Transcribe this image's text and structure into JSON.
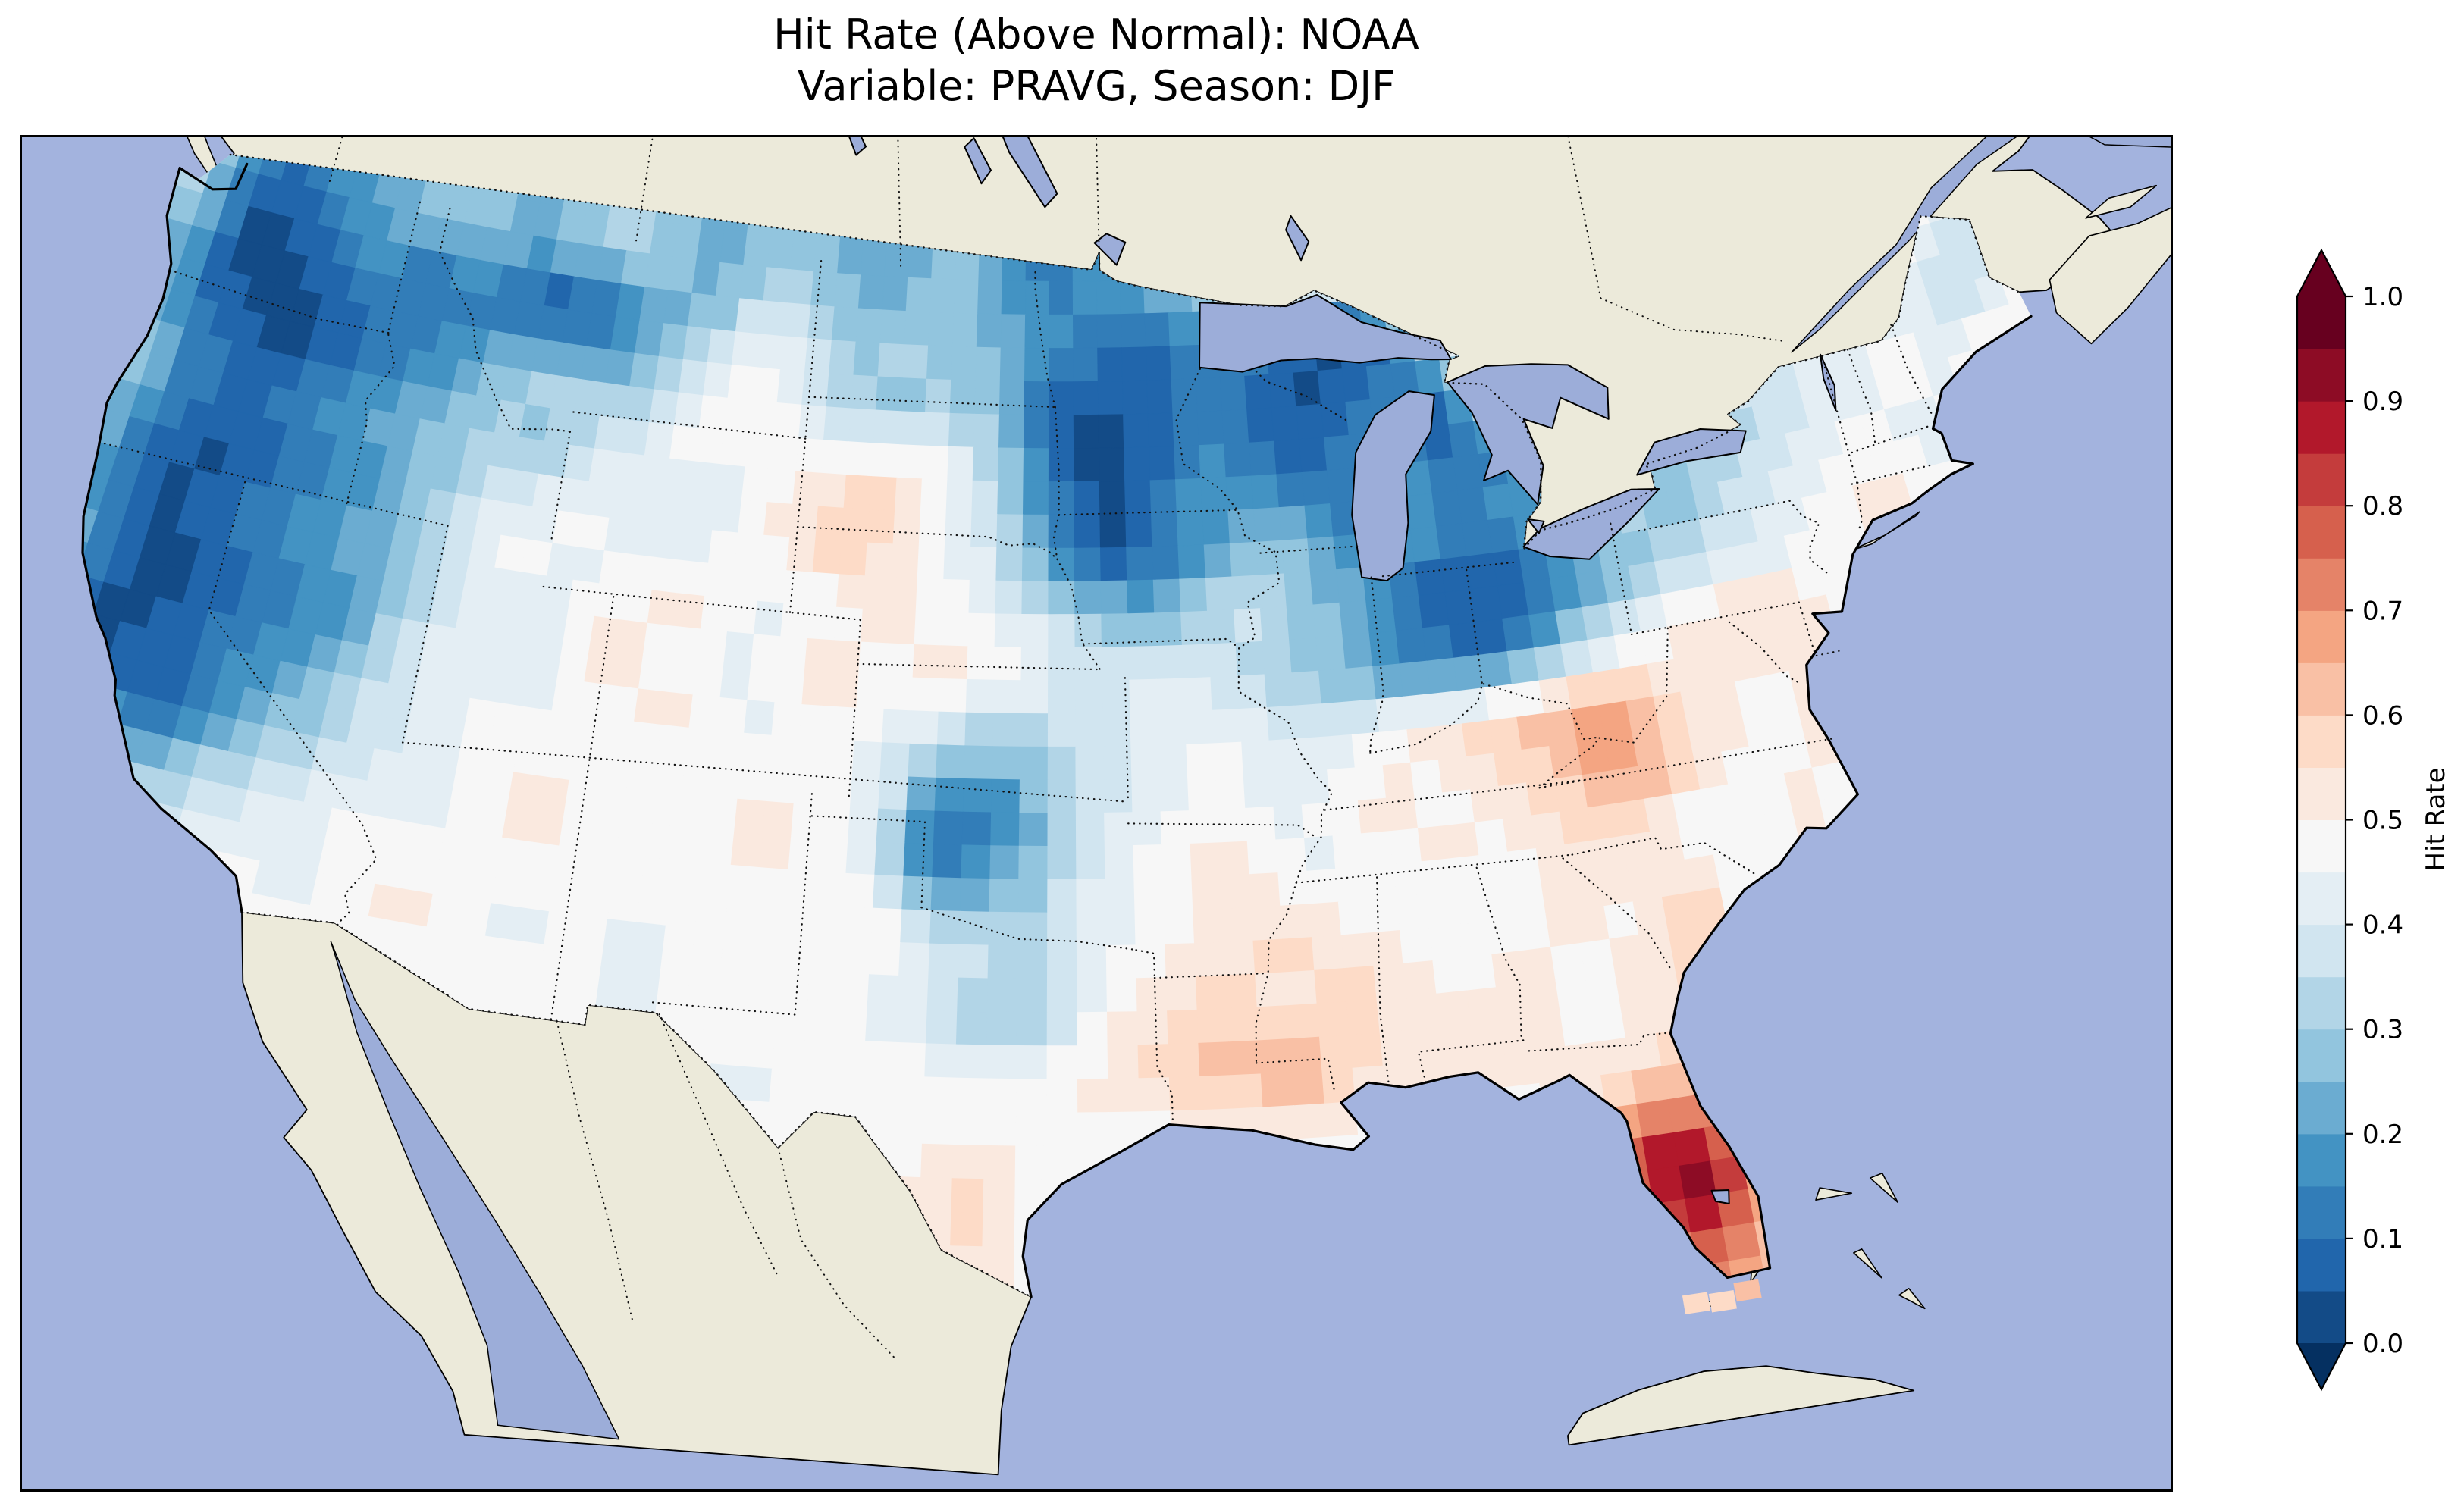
{
  "figure": {
    "title_line1": "Hit Rate (Above Normal): NOAA",
    "title_line2": "Variable: PRAVG, Season: DJF"
  },
  "colorbar": {
    "label": "Hit Rate",
    "tick_labels": [
      "0.0",
      "0.1",
      "0.2",
      "0.3",
      "0.4",
      "0.5",
      "0.6",
      "0.7",
      "0.8",
      "0.9",
      "1.0"
    ],
    "tick_values": [
      0,
      0.1,
      0.2,
      0.3,
      0.4,
      0.5,
      0.6,
      0.7,
      0.8,
      0.9,
      1.0
    ],
    "extend": "both"
  },
  "map_colors": {
    "ocean": "#a3b3de",
    "land": "#eceada",
    "lake": "#9cadd9",
    "coast": "#000000"
  },
  "chart_data": {
    "type": "heatmap",
    "title": "Hit Rate (Above Normal): NOAA",
    "subtitle": "Variable: PRAVG, Season: DJF",
    "variable": "PRAVG",
    "season": "DJF",
    "source_label": "NOAA",
    "colorbar_label": "Hit Rate",
    "value_range": [
      0,
      1
    ],
    "colormap": {
      "name": "RdBu_r",
      "anchors": [
        "#053061",
        "#2166ac",
        "#4393c3",
        "#92c5de",
        "#d1e5f0",
        "#f7f7f7",
        "#fddbc7",
        "#f4a582",
        "#d6604d",
        "#b2182b",
        "#67001f"
      ]
    },
    "grid": {
      "lon_start": -126,
      "lon_step": 1.5,
      "lat_start": 51,
      "lat_step": 1.5,
      "ncols": 40,
      "nrows": 18,
      "values": [
        [
          0.4,
          0.35,
          0.15,
          0.1,
          0.2,
          0.25,
          0.3,
          0.3,
          0.25,
          0.3,
          0.35,
          0.3,
          0.25,
          0.3,
          0.3,
          0.25,
          0.25,
          0.3,
          0.2,
          0.15,
          0.2,
          0.25,
          0.3,
          0.5,
          0.5,
          0.5,
          0.5,
          0.5,
          0.5,
          0.5,
          0.5,
          0.5,
          0.5,
          0.5,
          0.5,
          0.5,
          0.5,
          0.5,
          0.5,
          0.5
        ],
        [
          0.4,
          0.35,
          0.15,
          0.1,
          0.2,
          0.25,
          0.3,
          0.3,
          0.25,
          0.3,
          0.35,
          0.3,
          0.25,
          0.3,
          0.3,
          0.25,
          0.25,
          0.3,
          0.2,
          0.15,
          0.2,
          0.25,
          0.3,
          0.5,
          0.5,
          0.5,
          0.5,
          0.5,
          0.5,
          0.5,
          0.5,
          0.5,
          0.5,
          0.5,
          0.5,
          0.5,
          0.5,
          0.5,
          0.5,
          0.5
        ],
        [
          0.3,
          0.25,
          0.05,
          0.05,
          0.1,
          0.2,
          0.1,
          0.15,
          0.1,
          0.05,
          0.1,
          0.25,
          0.3,
          0.45,
          0.4,
          0.3,
          0.35,
          0.3,
          0.25,
          0.2,
          0.15,
          0.1,
          0.15,
          0.2,
          0.1,
          0.05,
          0.1,
          0.5,
          0.5,
          0.5,
          0.5,
          0.5,
          0.5,
          0.5,
          0.5,
          0.5,
          0.5,
          0.5,
          0.4,
          0.5
        ],
        [
          0.35,
          0.2,
          0.1,
          0.05,
          0.05,
          0.1,
          0.15,
          0.2,
          0.3,
          0.35,
          0.3,
          0.35,
          0.5,
          0.55,
          0.45,
          0.35,
          0.3,
          0.35,
          0.3,
          0.1,
          0.05,
          0.1,
          0.15,
          0.1,
          0.05,
          0.1,
          0.15,
          0.1,
          0.5,
          0.5,
          0.5,
          0.5,
          0.5,
          0.5,
          0.5,
          0.5,
          0.45,
          0.4,
          0.35,
          0.5
        ],
        [
          0.4,
          0.3,
          0.15,
          0.1,
          0.15,
          0.2,
          0.25,
          0.3,
          0.35,
          0.3,
          0.4,
          0.45,
          0.5,
          0.45,
          0.5,
          0.55,
          0.6,
          0.5,
          0.35,
          0.15,
          0.05,
          0.1,
          0.2,
          0.15,
          0.1,
          0.15,
          0.2,
          0.1,
          0.15,
          0.3,
          0.3,
          0.3,
          0.3,
          0.35,
          0.4,
          0.45,
          0.5,
          0.45,
          0.55,
          0.5
        ],
        [
          0.35,
          0.2,
          0.1,
          0.05,
          0.1,
          0.15,
          0.2,
          0.3,
          0.4,
          0.45,
          0.5,
          0.45,
          0.4,
          0.5,
          0.55,
          0.65,
          0.55,
          0.45,
          0.4,
          0.2,
          0.05,
          0.1,
          0.2,
          0.3,
          0.25,
          0.15,
          0.25,
          0.15,
          0.2,
          0.3,
          0.35,
          0.3,
          0.35,
          0.4,
          0.45,
          0.5,
          0.45,
          0.5,
          0.5,
          0.5
        ],
        [
          0.3,
          0.15,
          0.05,
          0.1,
          0.15,
          0.2,
          0.25,
          0.3,
          0.45,
          0.5,
          0.45,
          0.5,
          0.55,
          0.5,
          0.45,
          0.5,
          0.55,
          0.5,
          0.45,
          0.4,
          0.3,
          0.25,
          0.35,
          0.4,
          0.3,
          0.25,
          0.1,
          0.05,
          0.1,
          0.2,
          0.3,
          0.35,
          0.4,
          0.45,
          0.5,
          0.55,
          0.5,
          0.5,
          0.5,
          0.5
        ],
        [
          0.35,
          0.2,
          0.05,
          0.05,
          0.1,
          0.15,
          0.2,
          0.35,
          0.45,
          0.4,
          0.5,
          0.55,
          0.5,
          0.45,
          0.5,
          0.55,
          0.5,
          0.55,
          0.5,
          0.45,
          0.4,
          0.45,
          0.4,
          0.35,
          0.3,
          0.2,
          0.15,
          0.1,
          0.2,
          0.35,
          0.45,
          0.55,
          0.6,
          0.55,
          0.5,
          0.5,
          0.5,
          0.5,
          0.5,
          0.5
        ],
        [
          0.2,
          0.05,
          0.05,
          0.1,
          0.15,
          0.2,
          0.3,
          0.4,
          0.45,
          0.5,
          0.45,
          0.5,
          0.55,
          0.5,
          0.45,
          0.5,
          0.45,
          0.4,
          0.3,
          0.35,
          0.4,
          0.45,
          0.5,
          0.45,
          0.4,
          0.5,
          0.55,
          0.6,
          0.65,
          0.7,
          0.6,
          0.55,
          0.5,
          0.55,
          0.5,
          0.5,
          0.5,
          0.5,
          0.5,
          0.5
        ],
        [
          0.3,
          0.1,
          0.15,
          0.1,
          0.2,
          0.3,
          0.35,
          0.4,
          0.45,
          0.5,
          0.55,
          0.5,
          0.45,
          0.5,
          0.55,
          0.5,
          0.45,
          0.1,
          0.15,
          0.3,
          0.4,
          0.45,
          0.5,
          0.45,
          0.5,
          0.55,
          0.5,
          0.55,
          0.6,
          0.7,
          0.65,
          0.55,
          0.5,
          0.55,
          0.5,
          0.5,
          0.5,
          0.5,
          0.5,
          0.5
        ],
        [
          0.45,
          0.4,
          0.35,
          0.3,
          0.35,
          0.4,
          0.45,
          0.5,
          0.45,
          0.5,
          0.55,
          0.5,
          0.55,
          0.5,
          0.55,
          0.5,
          0.45,
          0.15,
          0.2,
          0.35,
          0.45,
          0.5,
          0.55,
          0.5,
          0.45,
          0.5,
          0.55,
          0.5,
          0.55,
          0.6,
          0.5,
          0.45,
          0.55,
          0.5,
          0.5,
          0.5,
          0.5,
          0.5,
          0.5,
          0.5
        ],
        [
          0.5,
          0.5,
          0.5,
          0.45,
          0.45,
          0.5,
          0.45,
          0.5,
          0.55,
          0.5,
          0.45,
          0.5,
          0.45,
          0.5,
          0.45,
          0.5,
          0.55,
          0.45,
          0.4,
          0.35,
          0.45,
          0.5,
          0.55,
          0.6,
          0.55,
          0.5,
          0.45,
          0.5,
          0.55,
          0.5,
          0.6,
          0.5,
          0.5,
          0.5,
          0.5,
          0.5,
          0.5,
          0.5,
          0.5,
          0.5
        ],
        [
          0.5,
          0.5,
          0.5,
          0.5,
          0.5,
          0.5,
          0.5,
          0.5,
          0.5,
          0.5,
          0.5,
          0.5,
          0.45,
          0.5,
          0.55,
          0.5,
          0.45,
          0.4,
          0.3,
          0.35,
          0.5,
          0.55,
          0.6,
          0.55,
          0.6,
          0.55,
          0.5,
          0.55,
          0.5,
          0.55,
          0.6,
          0.5,
          0.5,
          0.5,
          0.5,
          0.5,
          0.5,
          0.5,
          0.5,
          0.5
        ],
        [
          0.5,
          0.5,
          0.5,
          0.5,
          0.5,
          0.5,
          0.5,
          0.5,
          0.5,
          0.5,
          0.5,
          0.5,
          0.5,
          0.5,
          0.45,
          0.5,
          0.55,
          0.5,
          0.45,
          0.5,
          0.55,
          0.6,
          0.65,
          0.7,
          0.6,
          0.55,
          0.6,
          0.55,
          0.5,
          0.55,
          0.6,
          0.5,
          0.5,
          0.5,
          0.5,
          0.5,
          0.5,
          0.5,
          0.5,
          0.5
        ],
        [
          0.5,
          0.5,
          0.5,
          0.5,
          0.5,
          0.5,
          0.5,
          0.5,
          0.5,
          0.5,
          0.5,
          0.5,
          0.5,
          0.5,
          0.5,
          0.5,
          0.45,
          0.5,
          0.55,
          0.5,
          0.5,
          0.5,
          0.5,
          0.5,
          0.5,
          0.5,
          0.5,
          0.5,
          0.6,
          0.7,
          0.75,
          0.5,
          0.5,
          0.5,
          0.5,
          0.5,
          0.5,
          0.5,
          0.5,
          0.5
        ],
        [
          0.5,
          0.5,
          0.5,
          0.5,
          0.5,
          0.5,
          0.5,
          0.5,
          0.5,
          0.5,
          0.5,
          0.5,
          0.5,
          0.5,
          0.5,
          0.5,
          0.5,
          0.55,
          0.6,
          0.5,
          0.5,
          0.5,
          0.5,
          0.5,
          0.5,
          0.5,
          0.5,
          0.5,
          0.85,
          1.0,
          0.8,
          0.5,
          0.5,
          0.5,
          0.5,
          0.5,
          0.5,
          0.5,
          0.5,
          0.5
        ],
        [
          0.5,
          0.5,
          0.5,
          0.5,
          0.5,
          0.5,
          0.5,
          0.5,
          0.5,
          0.5,
          0.5,
          0.5,
          0.5,
          0.5,
          0.5,
          0.5,
          0.5,
          0.5,
          0.55,
          0.5,
          0.5,
          0.5,
          0.5,
          0.5,
          0.5,
          0.5,
          0.5,
          0.5,
          0.5,
          0.9,
          0.75,
          0.5,
          0.5,
          0.5,
          0.5,
          0.5,
          0.5,
          0.5,
          0.5,
          0.5
        ],
        [
          0.5,
          0.5,
          0.5,
          0.5,
          0.5,
          0.5,
          0.5,
          0.5,
          0.5,
          0.5,
          0.5,
          0.5,
          0.5,
          0.5,
          0.5,
          0.5,
          0.5,
          0.5,
          0.5,
          0.5,
          0.5,
          0.5,
          0.5,
          0.5,
          0.5,
          0.5,
          0.5,
          0.5,
          0.5,
          0.7,
          0.65,
          0.5,
          0.5,
          0.5,
          0.5,
          0.5,
          0.5,
          0.5,
          0.5,
          0.5
        ]
      ]
    },
    "extra_cells": [
      {
        "lon": -81.9,
        "lat": 24.7,
        "v": 0.6
      },
      {
        "lon": -81.3,
        "lat": 24.65,
        "v": 0.6
      },
      {
        "lon": -80.7,
        "lat": 24.8,
        "v": 0.65
      }
    ]
  }
}
